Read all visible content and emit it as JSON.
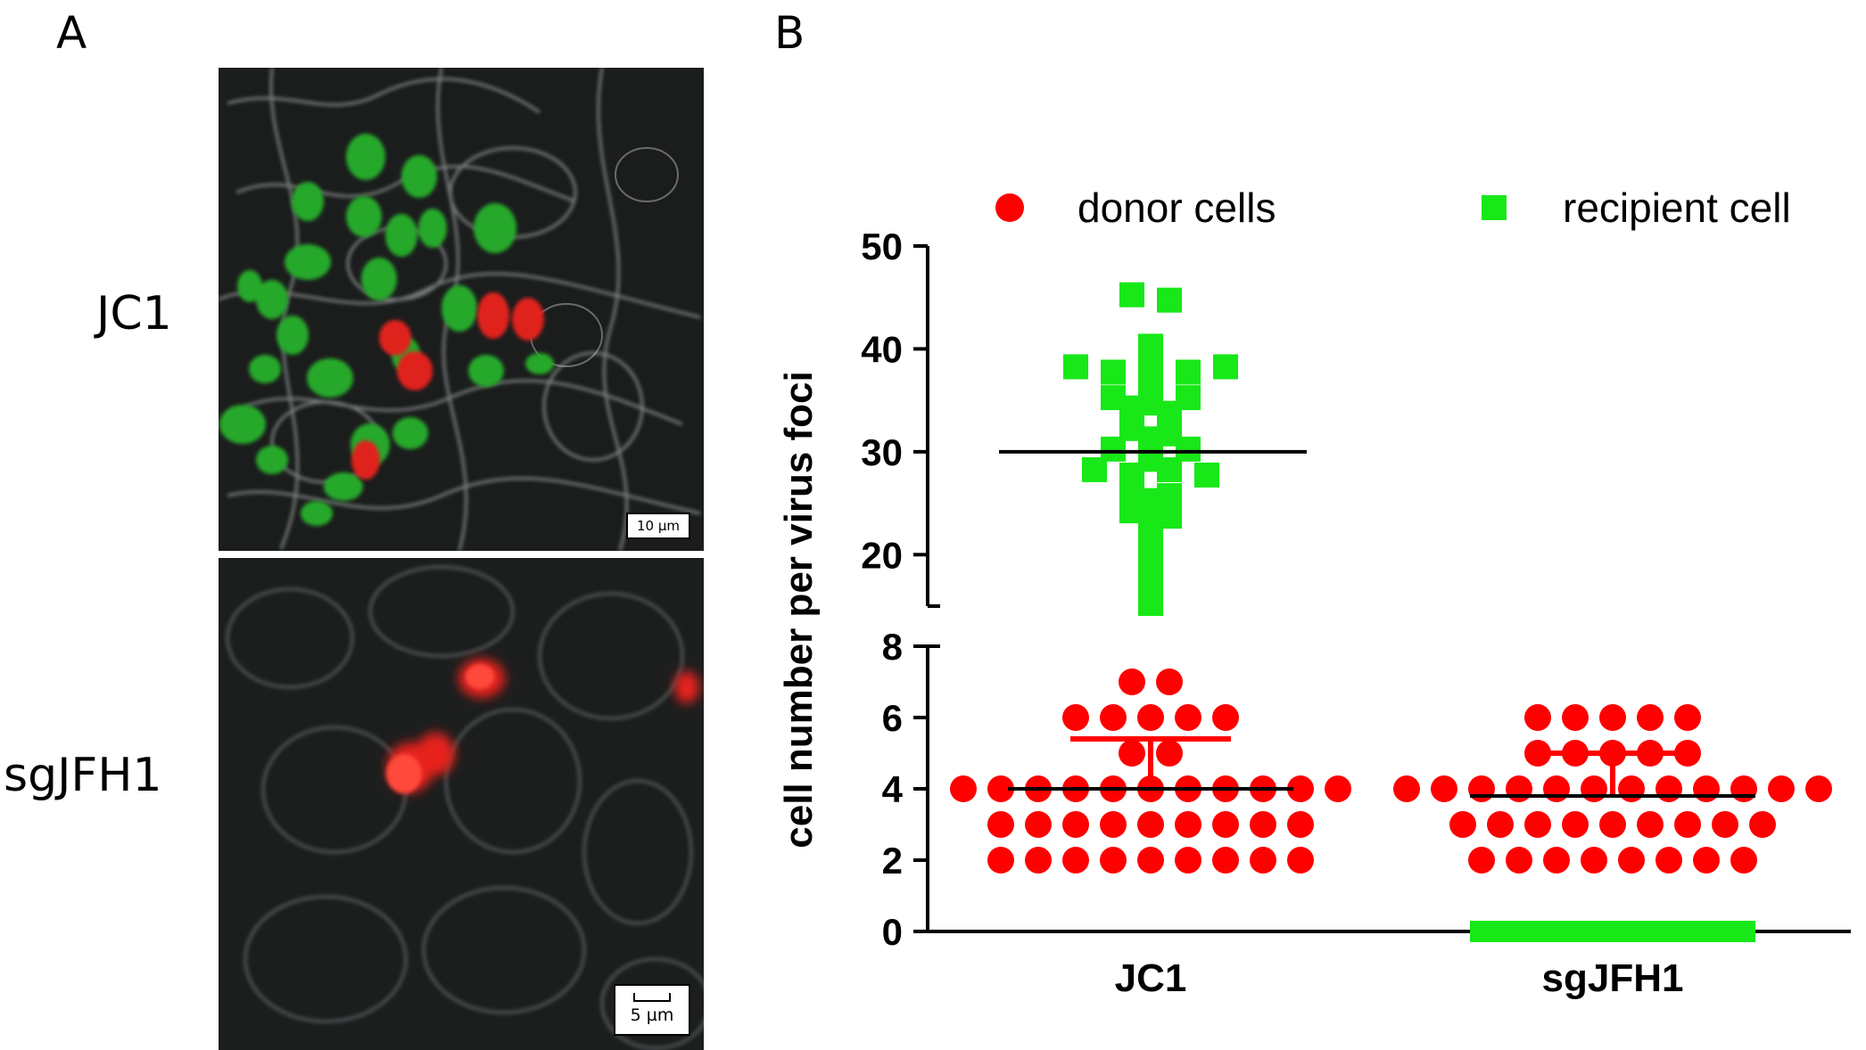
{
  "panels": {
    "a_label": "A",
    "b_label": "B",
    "rows": [
      {
        "label": "JC1",
        "scale_text": "10 µm"
      },
      {
        "label": "sgJFH1",
        "scale_text": "5 µm"
      }
    ]
  },
  "colors": {
    "donor": "#ff0000",
    "recipient": "#18e818",
    "mean_line": "#000000",
    "micro_bg": "#1c1e1e"
  },
  "chart_data": {
    "type": "scatter",
    "xlabel": "",
    "ylabel": "cell number per  virus foci",
    "categories": [
      "JC1",
      "sgJFH1"
    ],
    "axis_break": true,
    "y_segments": [
      {
        "range": [
          0,
          8
        ],
        "ticks": [
          0,
          2,
          4,
          6,
          8
        ]
      },
      {
        "range": [
          15,
          50
        ],
        "ticks": [
          20,
          30,
          40,
          50
        ]
      }
    ],
    "legend": {
      "placement": "top",
      "entries": [
        "donor cells",
        "recipient cell"
      ]
    },
    "series": [
      {
        "name": "donor cells",
        "marker": "circle",
        "groups": [
          {
            "category": "JC1",
            "mean": 4.0,
            "sd_upper": 5.4,
            "values": [
              7,
              7,
              6,
              6,
              6,
              6,
              6,
              5,
              5,
              4,
              4,
              4,
              4,
              4,
              4,
              4,
              4,
              4,
              4,
              4,
              3,
              3,
              3,
              3,
              3,
              3,
              3,
              3,
              3,
              2,
              2,
              2,
              2,
              2,
              2,
              2,
              2,
              2
            ]
          },
          {
            "category": "sgJFH1",
            "mean": 3.8,
            "sd_upper": 5.0,
            "values": [
              6,
              6,
              6,
              6,
              6,
              5,
              5,
              5,
              5,
              5,
              4,
              4,
              4,
              4,
              4,
              4,
              4,
              4,
              4,
              4,
              4,
              4,
              3,
              3,
              3,
              3,
              3,
              3,
              3,
              3,
              3,
              2,
              2,
              2,
              2,
              2,
              2,
              2,
              2
            ]
          }
        ]
      },
      {
        "name": "recipient cell",
        "marker": "square",
        "groups": [
          {
            "category": "JC1",
            "mean": 30.0,
            "values": [
              45,
              45,
              40,
              39,
              38,
              38,
              38,
              38,
              38,
              37,
              36,
              35,
              35,
              35,
              34,
              34,
              33,
              33,
              32,
              32,
              31,
              30,
              30,
              30,
              29,
              28,
              28,
              28,
              28,
              26,
              26,
              25,
              24,
              24,
              23,
              22,
              21,
              20,
              18,
              16,
              15
            ]
          },
          {
            "category": "sgJFH1",
            "mean": 0,
            "values": [
              0
            ]
          }
        ]
      }
    ]
  }
}
